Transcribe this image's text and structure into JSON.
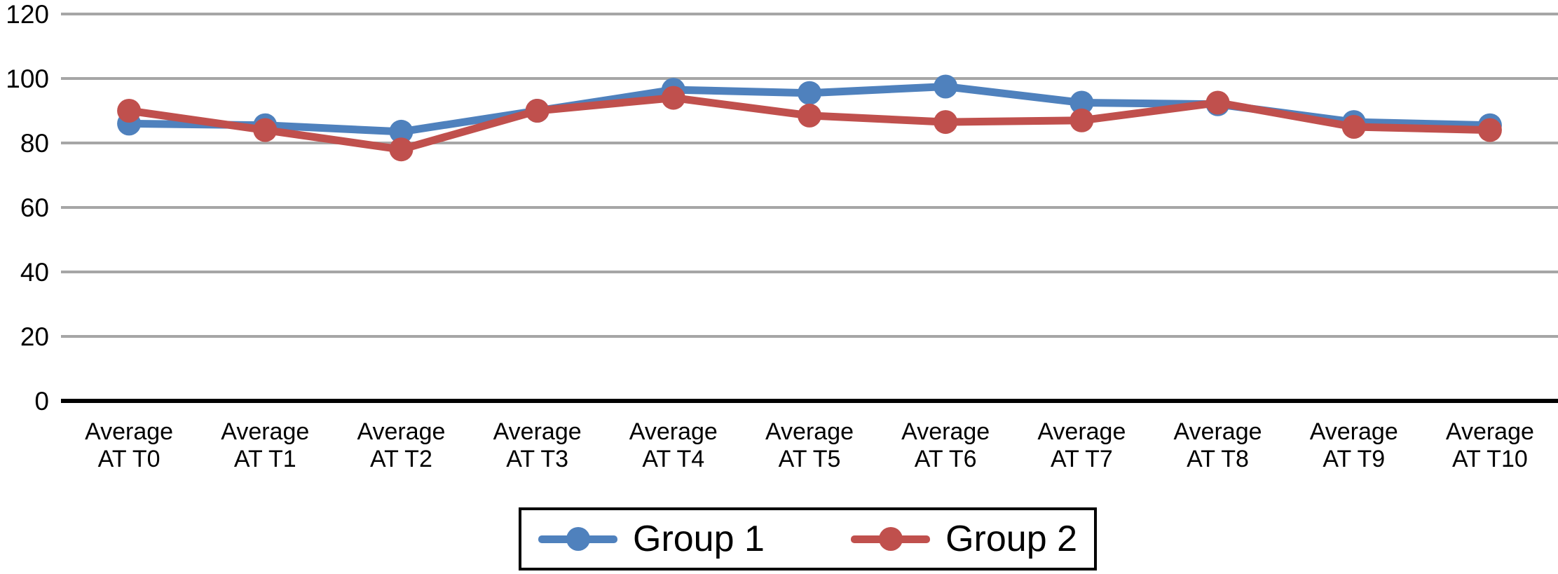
{
  "chart_data": {
    "type": "line",
    "title": "",
    "xlabel": "",
    "ylabel": "",
    "categories": [
      "Average AT T0",
      "Average AT T1",
      "Average AT T2",
      "Average AT T3",
      "Average AT T4",
      "Average AT T5",
      "Average AT T6",
      "Average AT T7",
      "Average AT T8",
      "Average AT T9",
      "Average AT T10"
    ],
    "series": [
      {
        "name": "Group 1",
        "color": "#4F81BD",
        "values": [
          86,
          85.5,
          83.5,
          90,
          96.5,
          95.5,
          97.5,
          92.5,
          92,
          86.5,
          85.5
        ]
      },
      {
        "name": "Group 2",
        "color": "#C0504D",
        "values": [
          90,
          84,
          78,
          90,
          94,
          88.5,
          86.5,
          87,
          92.5,
          85,
          84
        ]
      }
    ],
    "ylim": [
      0,
      120
    ],
    "yticks": [
      0,
      20,
      40,
      60,
      80,
      100,
      120
    ],
    "ytick_step": 20,
    "grid": true,
    "gridline_color": "#A6A6A6",
    "axis_color": "#000000",
    "text_color": "#000000",
    "background_color": "#FFFFFF",
    "marker": "circle",
    "legend_position": "bottom",
    "legend_border": true
  }
}
